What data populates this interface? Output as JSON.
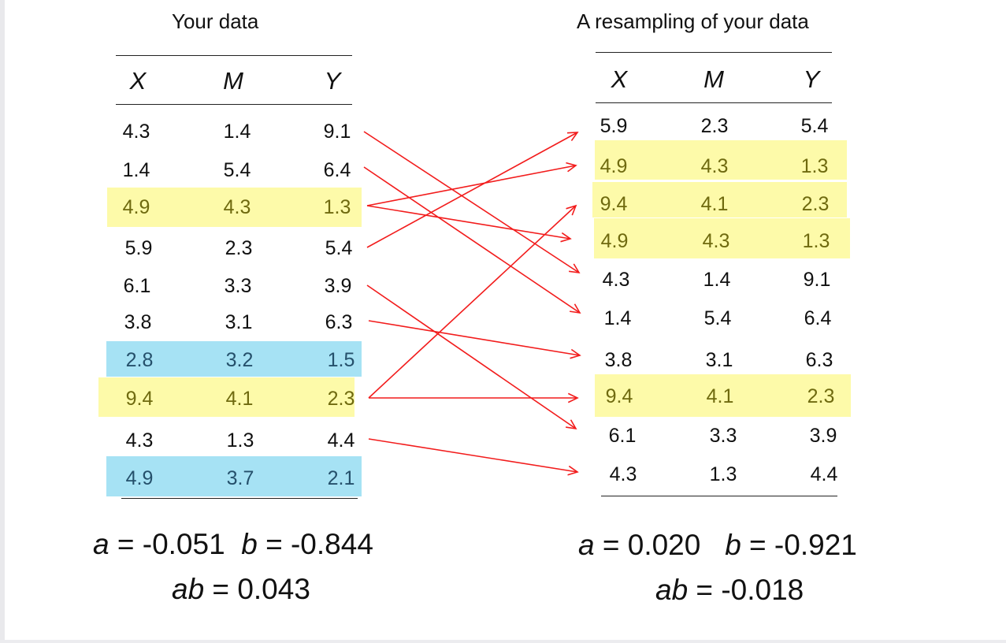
{
  "left_panel": {
    "title": "Your data",
    "headers": [
      "X",
      "M",
      "Y"
    ],
    "rows": [
      [
        "4.3",
        "1.4",
        "9.1"
      ],
      [
        "1.4",
        "5.4",
        "6.4"
      ],
      [
        "4.9",
        "4.3",
        "1.3"
      ],
      [
        "5.9",
        "2.3",
        "5.4"
      ],
      [
        "6.1",
        "3.3",
        "3.9"
      ],
      [
        "3.8",
        "3.1",
        "6.3"
      ],
      [
        "2.8",
        "3.2",
        "1.5"
      ],
      [
        "9.4",
        "4.1",
        "2.3"
      ],
      [
        "4.3",
        "1.3",
        "4.4"
      ],
      [
        "4.9",
        "3.7",
        "2.1"
      ]
    ],
    "stats": {
      "a_var": "a",
      "a_text": " = -0.051",
      "b_var": "b",
      "b_text": " = -0.844",
      "ab_var": "ab",
      "ab_text": " = 0.043"
    }
  },
  "right_panel": {
    "title": "A resampling of your data",
    "headers": [
      "X",
      "M",
      "Y"
    ],
    "rows": [
      [
        "5.9",
        "2.3",
        "5.4"
      ],
      [
        "4.9",
        "4.3",
        "1.3"
      ],
      [
        "9.4",
        "4.1",
        "2.3"
      ],
      [
        "4.9",
        "4.3",
        "1.3"
      ],
      [
        "4.3",
        "1.4",
        "9.1"
      ],
      [
        "1.4",
        "5.4",
        "6.4"
      ],
      [
        "3.8",
        "3.1",
        "6.3"
      ],
      [
        "9.4",
        "4.1",
        "2.3"
      ],
      [
        "6.1",
        "3.3",
        "3.9"
      ],
      [
        "4.3",
        "1.3",
        "4.4"
      ]
    ],
    "stats": {
      "a_var": "a",
      "a_text": " = 0.020",
      "b_var": "b",
      "b_text": " = -0.921",
      "ab_var": "ab",
      "ab_text": " = -0.018"
    }
  },
  "mapping": [
    {
      "from": 0,
      "to": 4
    },
    {
      "from": 1,
      "to": 5
    },
    {
      "from": 2,
      "to": 1
    },
    {
      "from": 2,
      "to": 3
    },
    {
      "from": 3,
      "to": 0
    },
    {
      "from": 4,
      "to": 8
    },
    {
      "from": 5,
      "to": 6
    },
    {
      "from": 7,
      "to": 2
    },
    {
      "from": 7,
      "to": 7
    },
    {
      "from": 8,
      "to": 9
    }
  ],
  "colors": {
    "arrow": "#f21c1c",
    "highlight_yellow": "#fdfaa9",
    "highlight_blue": "#a6e2f4"
  }
}
